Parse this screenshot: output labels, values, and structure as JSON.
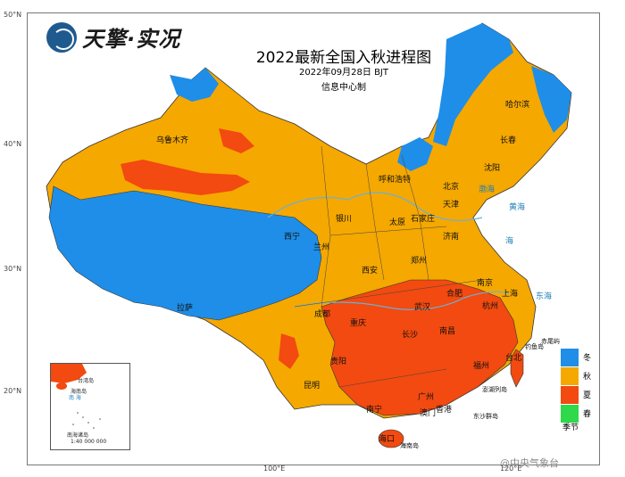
{
  "header": {
    "logo_text": "天擎·实况",
    "title": "2022最新全国入秋进程图",
    "date": "2022年09月28日 BJT",
    "maker": "信息中心制"
  },
  "axes": {
    "lat_labels": [
      "50°N",
      "40°N",
      "30°N",
      "20°N"
    ],
    "lon_label": "100°E",
    "lon_label_2": "120°E"
  },
  "cities": [
    "乌鲁木齐",
    "哈尔滨",
    "长春",
    "沈阳",
    "呼和浩特",
    "北京",
    "天津",
    "银川",
    "太原",
    "石家庄",
    "兰州",
    "西宁",
    "济南",
    "郑州",
    "西安",
    "南京",
    "合肥",
    "上海",
    "拉萨",
    "成都",
    "重庆",
    "武汉",
    "杭州",
    "长沙",
    "南昌",
    "贵阳",
    "福州",
    "台北",
    "昆明",
    "南宁",
    "广州",
    "香港",
    "澳门",
    "海口"
  ],
  "seas": [
    "渤海",
    "黄海",
    "东海",
    "海"
  ],
  "inset": {
    "labels": [
      "台湾岛",
      "钓鱼岛",
      "赤尾屿",
      "海南岛",
      "南海诸岛",
      "东沙群岛",
      "澎湖列岛",
      "1:40 000 000"
    ],
    "sea_label": "南 海"
  },
  "map_labels": {
    "diaoyu": "钓鱼岛",
    "chiwei": "赤尾屿",
    "penghu": "澎湖列岛",
    "dongsha": "东沙群岛",
    "hainan": "海南岛"
  },
  "legend": {
    "title": "季节",
    "items": [
      {
        "label": "冬",
        "color": "#1e8ee8"
      },
      {
        "label": "秋",
        "color": "#f5a800"
      },
      {
        "label": "夏",
        "color": "#f24a10"
      },
      {
        "label": "春",
        "color": "#2ed94a"
      }
    ]
  },
  "watermark": "@中央气象台"
}
